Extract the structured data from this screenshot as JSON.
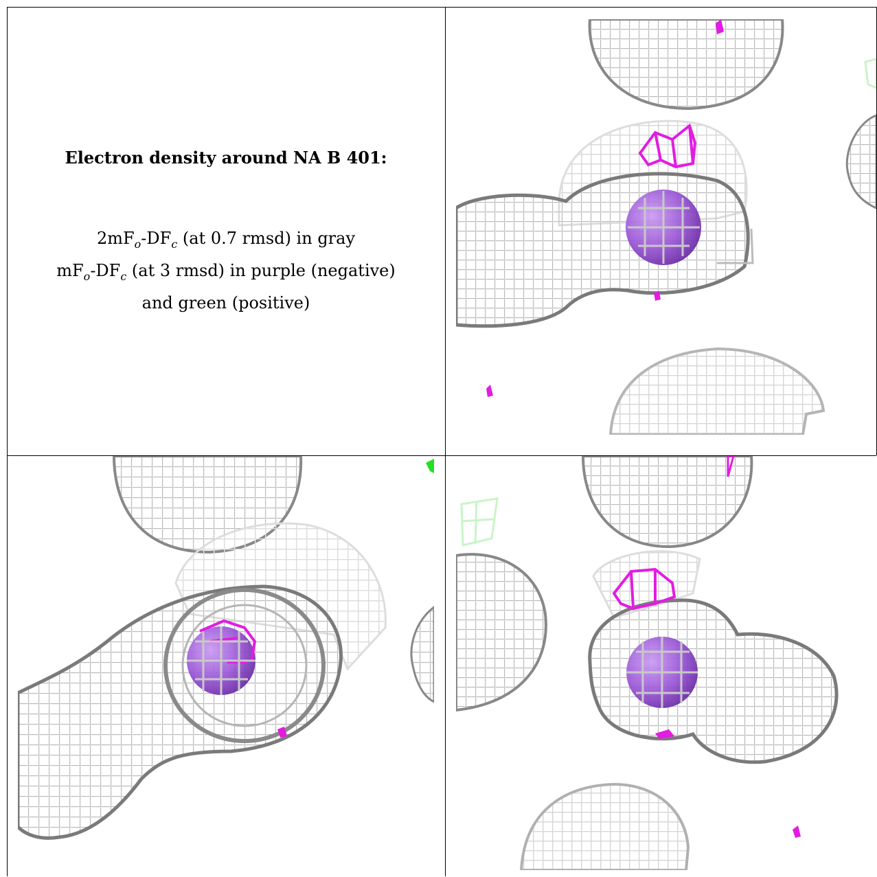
{
  "legend": {
    "title": "Electron density around NA B 401:",
    "line1": "2mFₒ-DFᴄ (at 0.7 rmsd) in gray",
    "line1_parts": {
      "a": "2mF",
      "sub1": "o",
      "b": "-DF",
      "sub2": "c",
      "c": " (at 0.7 rmsd) in gray"
    },
    "line2_parts": {
      "a": "mF",
      "sub1": "o",
      "b": "-DF",
      "sub2": "c",
      "c": " (at 3 rmsd) in purple (negative)"
    },
    "line3": "and green (positive)"
  },
  "colors": {
    "mesh_gray": "#9a9a9a",
    "mesh_light": "#dcdcdc",
    "negative_purple": "#e21ce2",
    "positive_green": "#22e022",
    "ion_sphere": "#9a55d6"
  },
  "panels": [
    {
      "view": "view-1",
      "features": [
        "gray-mesh",
        "negative-density",
        "positive-density",
        "sodium-ion"
      ]
    },
    {
      "view": "view-2",
      "features": [
        "gray-mesh",
        "negative-density",
        "positive-density",
        "sodium-ion"
      ]
    },
    {
      "view": "view-3",
      "features": [
        "gray-mesh",
        "negative-density",
        "positive-density",
        "sodium-ion"
      ]
    }
  ]
}
